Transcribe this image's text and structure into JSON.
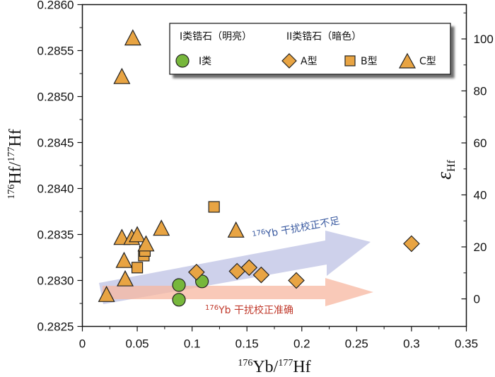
{
  "chart_data": {
    "type": "scatter",
    "xlabel": "176Yb/177Hf",
    "ylabel": "176Hf/177Hf",
    "y2label": "εHf",
    "xlim": [
      0,
      0.35
    ],
    "ylim": [
      0.2825,
      0.286
    ],
    "y2lim": [
      -10.6,
      113.2
    ],
    "x_ticks": [
      "0",
      "0.05",
      "0.1",
      "0.15",
      "0.2",
      "0.25",
      "0.3",
      "0.35"
    ],
    "y_ticks": [
      "0.2825",
      "0.2830",
      "0.2835",
      "0.2840",
      "0.2845",
      "0.2850",
      "0.2855",
      "0.2860"
    ],
    "y2_ticks": [
      "0",
      "20",
      "40",
      "60",
      "80",
      "100"
    ],
    "legend": {
      "placement": "top-right",
      "group1_title": "I类锆石（明亮）",
      "group2_title": "II类锆石（暗色）"
    },
    "colors": {
      "class1": "#77b73c",
      "typeABC": "#e8a443",
      "edge": "#222222"
    },
    "series": [
      {
        "name": "I类",
        "marker": "circle",
        "x": [
          0.088,
          0.088,
          0.109
        ],
        "y": [
          0.28279,
          0.28295,
          0.28299
        ]
      },
      {
        "name": "A型",
        "marker": "diamond",
        "x": [
          0.104,
          0.141,
          0.152,
          0.163,
          0.195,
          0.3
        ],
        "y": [
          0.28309,
          0.2831,
          0.28314,
          0.28306,
          0.283,
          0.2834
        ]
      },
      {
        "name": "B型",
        "marker": "square",
        "x": [
          0.05,
          0.056,
          0.057,
          0.12
        ],
        "y": [
          0.28314,
          0.28327,
          0.28332,
          0.2838
        ]
      },
      {
        "name": "C型",
        "marker": "triangle",
        "x": [
          0.022,
          0.036,
          0.038,
          0.039,
          0.045,
          0.05,
          0.058,
          0.072,
          0.14,
          0.036,
          0.046
        ],
        "y": [
          0.28284,
          0.28346,
          0.28321,
          0.28301,
          0.28346,
          0.28349,
          0.28339,
          0.28356,
          0.28354,
          0.28521,
          0.28563
        ]
      }
    ],
    "annotations": [
      {
        "text": "176Yb 干扰校正不足",
        "sup": "176",
        "label": "Yb 干扰校正不足",
        "color": "#3a5aa0",
        "arrow_color": "#b9bde3"
      },
      {
        "text": "176Yb 干扰校正准确",
        "sup": "176",
        "label": "Yb 干扰校正准确",
        "color": "#c0392b",
        "arrow_color": "#f7b7a0"
      }
    ]
  }
}
